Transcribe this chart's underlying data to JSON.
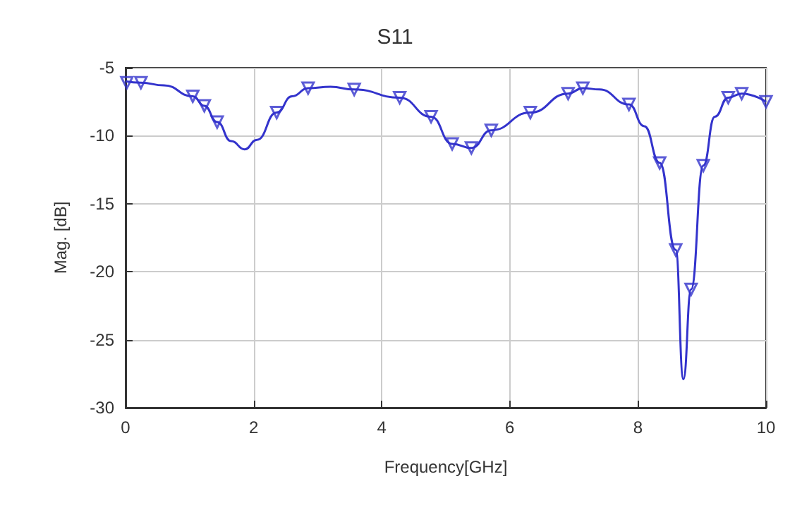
{
  "chart_data": {
    "type": "line",
    "title": "S11",
    "xlabel": "Frequency[GHz]",
    "ylabel": "Mag. [dB]",
    "xlim": [
      0,
      10
    ],
    "xticks": [
      0,
      2,
      4,
      6,
      8,
      10
    ],
    "ylim": [
      -30,
      -5
    ],
    "yticks": [
      -30,
      -25,
      -20,
      -15,
      -10,
      -5
    ],
    "grid": true,
    "series": [
      {
        "color": "#3333cc",
        "marker": "none",
        "x": [
          0,
          0.24,
          0.6,
          1.05,
          1.23,
          1.43,
          1.65,
          1.86,
          2.05,
          2.36,
          2.6,
          2.85,
          3.2,
          3.57,
          4.28,
          4.77,
          5.1,
          5.4,
          5.71,
          6.32,
          6.91,
          7.14,
          7.4,
          7.86,
          8.1,
          8.34,
          8.59,
          8.71,
          8.83,
          9.02,
          9.2,
          9.41,
          9.62,
          10
        ],
        "values": [
          -6.0,
          -6.1,
          -6.3,
          -7.1,
          -7.8,
          -9.0,
          -10.4,
          -11.0,
          -10.3,
          -8.3,
          -7.1,
          -6.5,
          -6.4,
          -6.6,
          -7.2,
          -8.6,
          -10.6,
          -10.9,
          -9.6,
          -8.3,
          -6.9,
          -6.5,
          -6.6,
          -7.7,
          -9.3,
          -12.0,
          -18.4,
          -27.9,
          -21.3,
          -12.2,
          -8.6,
          -7.2,
          -6.9,
          -7.5
        ]
      },
      {
        "type": "scatter",
        "color": "#3333cc",
        "marker": "triangle",
        "x": [
          0.02,
          0.24,
          1.05,
          1.23,
          1.43,
          2.36,
          2.85,
          3.57,
          4.28,
          4.77,
          5.1,
          5.4,
          5.71,
          6.32,
          6.91,
          7.14,
          7.86,
          8.34,
          8.59,
          8.83,
          9.02,
          9.41,
          9.62,
          10
        ],
        "values": [
          -6.1,
          -6.1,
          -7.1,
          -7.8,
          -9.0,
          -8.3,
          -6.5,
          -6.6,
          -7.2,
          -8.6,
          -10.6,
          -10.9,
          -9.6,
          -8.3,
          -6.9,
          -6.5,
          -7.7,
          -12.0,
          -18.4,
          -21.3,
          -12.2,
          -7.2,
          -6.9,
          -7.5
        ]
      }
    ]
  }
}
